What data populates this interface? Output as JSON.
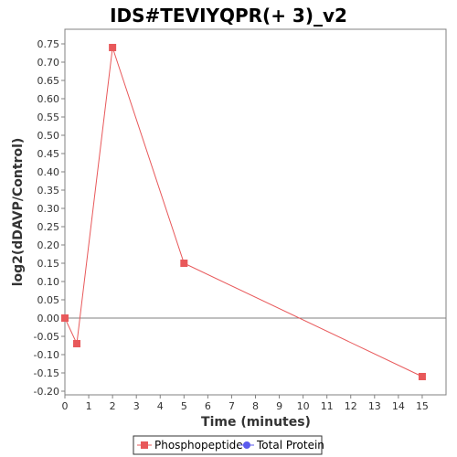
{
  "chart_data": {
    "type": "line",
    "title": "IDS#TEVIYQPR(+ 3)_v2",
    "xlabel": "Time (minutes)",
    "ylabel": "log2(dDAVP/Control)",
    "xlim": [
      0,
      16
    ],
    "ylim": [
      -0.21,
      0.79
    ],
    "x_ticks": [
      0,
      1,
      2,
      3,
      4,
      5,
      6,
      7,
      8,
      9,
      10,
      11,
      12,
      13,
      14,
      15
    ],
    "y_ticks": [
      -0.2,
      -0.15,
      -0.1,
      -0.05,
      0.0,
      0.05,
      0.1,
      0.15,
      0.2,
      0.25,
      0.3,
      0.35,
      0.4,
      0.45,
      0.5,
      0.55,
      0.6,
      0.65,
      0.7,
      0.75
    ],
    "y_tick_labels": [
      "-0.20",
      "-0.15",
      "-0.10",
      "-0.05",
      "0.00",
      "0.05",
      "0.10",
      "0.15",
      "0.20",
      "0.25",
      "0.30",
      "0.35",
      "0.40",
      "0.45",
      "0.50",
      "0.55",
      "0.60",
      "0.65",
      "0.70",
      "0.75"
    ],
    "zero_line": true,
    "grid": false,
    "legend_position": "bottom",
    "series": [
      {
        "name": "Phosphopeptide",
        "color": "#e8585a",
        "marker": "square",
        "x": [
          0,
          0.5,
          2,
          5,
          15
        ],
        "y": [
          0.0,
          -0.07,
          0.74,
          0.15,
          -0.16
        ]
      },
      {
        "name": "Total Protein",
        "color": "#5a5aee",
        "marker": "circle",
        "x": [],
        "y": []
      }
    ]
  }
}
